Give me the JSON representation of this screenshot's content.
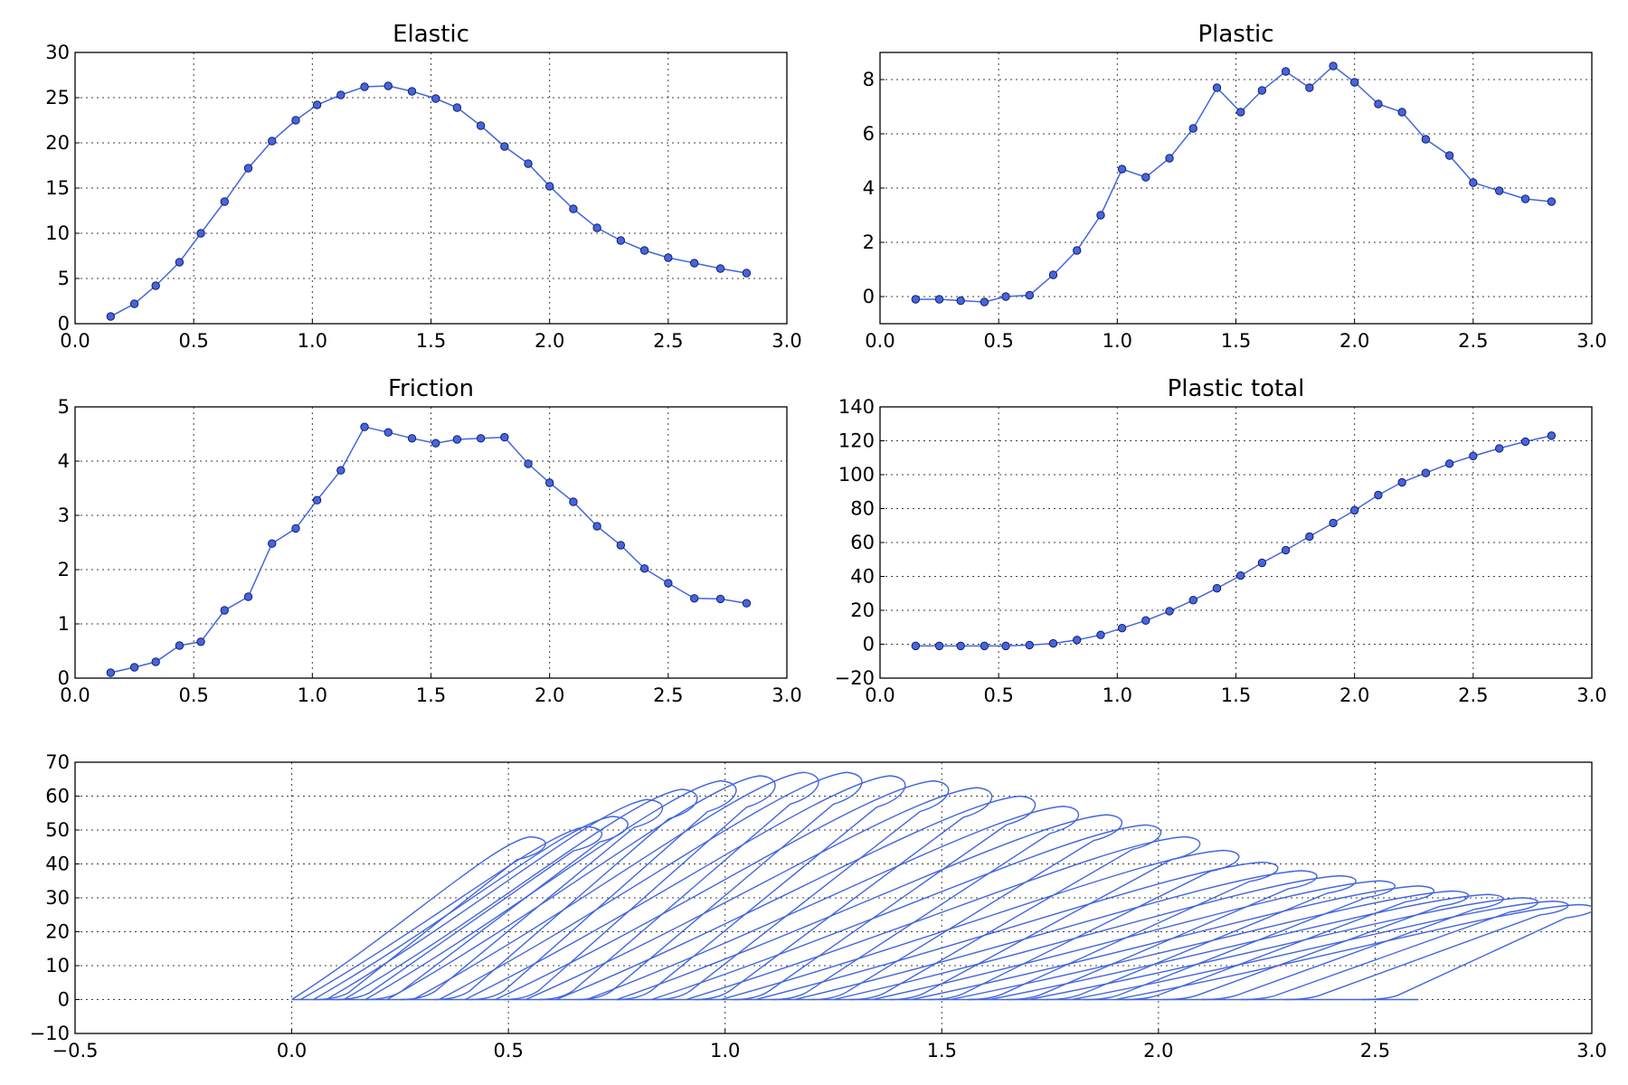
{
  "chart_data": [
    {
      "type": "line",
      "title": "Elastic",
      "xlim": [
        0,
        3
      ],
      "ylim": [
        0,
        30
      ],
      "xticks": [
        "0.0",
        "0.5",
        "1.0",
        "1.5",
        "2.0",
        "2.5",
        "3.0"
      ],
      "yticks": [
        "0",
        "5",
        "10",
        "15",
        "20",
        "25",
        "30"
      ],
      "grid": true,
      "series": [
        {
          "x": [
            0.15,
            0.25,
            0.34,
            0.44,
            0.53,
            0.63,
            0.73,
            0.83,
            0.93,
            1.02,
            1.12,
            1.22,
            1.32,
            1.42,
            1.52,
            1.61,
            1.71,
            1.81,
            1.91,
            2.0,
            2.1,
            2.2,
            2.3,
            2.4,
            2.5,
            2.61,
            2.72,
            2.83
          ],
          "y": [
            0.8,
            2.2,
            4.2,
            6.8,
            10.0,
            13.5,
            17.2,
            20.2,
            22.5,
            24.2,
            25.3,
            26.2,
            26.3,
            25.7,
            24.9,
            23.9,
            21.9,
            19.6,
            17.7,
            15.2,
            12.7,
            10.6,
            9.2,
            8.1,
            7.3,
            6.7,
            6.1,
            5.6
          ]
        }
      ]
    },
    {
      "type": "line",
      "title": "Plastic",
      "xlim": [
        0,
        3
      ],
      "ylim": [
        -1,
        9
      ],
      "xticks": [
        "0.0",
        "0.5",
        "1.0",
        "1.5",
        "2.0",
        "2.5",
        "3.0"
      ],
      "yticks": [
        "0",
        "2",
        "4",
        "6",
        "8"
      ],
      "grid": true,
      "series": [
        {
          "x": [
            0.15,
            0.25,
            0.34,
            0.44,
            0.53,
            0.63,
            0.73,
            0.83,
            0.93,
            1.02,
            1.12,
            1.22,
            1.32,
            1.42,
            1.52,
            1.61,
            1.71,
            1.81,
            1.91,
            2.0,
            2.1,
            2.2,
            2.3,
            2.4,
            2.5,
            2.61,
            2.72,
            2.83
          ],
          "y": [
            -0.1,
            -0.1,
            -0.15,
            -0.2,
            0.0,
            0.05,
            0.8,
            1.7,
            3.0,
            4.7,
            4.4,
            5.1,
            6.2,
            7.7,
            6.8,
            7.6,
            8.3,
            7.7,
            8.5,
            7.9,
            7.1,
            6.8,
            5.8,
            5.2,
            4.2,
            3.9,
            3.6,
            3.5
          ]
        }
      ]
    },
    {
      "type": "line",
      "title": "Friction",
      "xlim": [
        0,
        3
      ],
      "ylim": [
        0,
        5
      ],
      "xticks": [
        "0.0",
        "0.5",
        "1.0",
        "1.5",
        "2.0",
        "2.5",
        "3.0"
      ],
      "yticks": [
        "0",
        "1",
        "2",
        "3",
        "4",
        "5"
      ],
      "grid": true,
      "series": [
        {
          "x": [
            0.15,
            0.25,
            0.34,
            0.44,
            0.53,
            0.63,
            0.73,
            0.83,
            0.93,
            1.02,
            1.12,
            1.22,
            1.32,
            1.42,
            1.52,
            1.61,
            1.71,
            1.81,
            1.91,
            2.0,
            2.1,
            2.2,
            2.3,
            2.4,
            2.5,
            2.61,
            2.72,
            2.83
          ],
          "y": [
            0.1,
            0.2,
            0.3,
            0.6,
            0.67,
            1.25,
            1.5,
            2.48,
            2.76,
            3.28,
            3.83,
            4.63,
            4.53,
            4.42,
            4.33,
            4.4,
            4.42,
            4.44,
            3.95,
            3.6,
            3.25,
            2.8,
            2.45,
            2.02,
            1.75,
            1.47,
            1.46,
            1.38
          ]
        }
      ]
    },
    {
      "type": "line",
      "title": "Plastic total",
      "xlim": [
        0,
        3
      ],
      "ylim": [
        -20,
        140
      ],
      "xticks": [
        "0.0",
        "0.5",
        "1.0",
        "1.5",
        "2.0",
        "2.5",
        "3.0"
      ],
      "yticks": [
        "−20",
        "0",
        "20",
        "40",
        "60",
        "80",
        "100",
        "120",
        "140"
      ],
      "grid": true,
      "series": [
        {
          "x": [
            0.15,
            0.25,
            0.34,
            0.44,
            0.53,
            0.63,
            0.73,
            0.83,
            0.93,
            1.02,
            1.12,
            1.22,
            1.32,
            1.42,
            1.52,
            1.61,
            1.71,
            1.81,
            1.91,
            2.0,
            2.1,
            2.2,
            2.3,
            2.4,
            2.5,
            2.61,
            2.72,
            2.83
          ],
          "y": [
            -1.0,
            -1.0,
            -1.0,
            -1.0,
            -1.0,
            -0.5,
            0.5,
            2.5,
            5.5,
            9.5,
            14.0,
            19.5,
            26.0,
            33.0,
            40.5,
            48.0,
            55.5,
            63.5,
            71.5,
            79.0,
            88.0,
            95.5,
            101.0,
            106.5,
            111.0,
            115.5,
            119.5,
            123.0
          ]
        }
      ]
    },
    {
      "type": "line",
      "title": "",
      "xlim": [
        -0.5,
        3
      ],
      "ylim": [
        -10,
        70
      ],
      "xticks": [
        "−0.5",
        "0.0",
        "0.5",
        "1.0",
        "1.5",
        "2.0",
        "2.5",
        "3.0"
      ],
      "yticks": [
        "−10",
        "0",
        "10",
        "20",
        "30",
        "40",
        "50",
        "60",
        "70"
      ],
      "grid": true,
      "loops": [
        {
          "start": 0.0,
          "peak_x": 0.55,
          "peak_y": 48,
          "end": 0.1
        },
        {
          "start": 0.02,
          "peak_x": 0.68,
          "peak_y": 51,
          "end": 0.15
        },
        {
          "start": 0.05,
          "peak_x": 0.74,
          "peak_y": 54,
          "end": 0.22
        },
        {
          "start": 0.08,
          "peak_x": 0.82,
          "peak_y": 59,
          "end": 0.3
        },
        {
          "start": 0.12,
          "peak_x": 0.9,
          "peak_y": 62,
          "end": 0.38
        },
        {
          "start": 0.17,
          "peak_x": 0.99,
          "peak_y": 64.5,
          "end": 0.46
        },
        {
          "start": 0.22,
          "peak_x": 1.08,
          "peak_y": 66,
          "end": 0.54
        },
        {
          "start": 0.28,
          "peak_x": 1.18,
          "peak_y": 67,
          "end": 0.62
        },
        {
          "start": 0.34,
          "peak_x": 1.28,
          "peak_y": 67,
          "end": 0.71
        },
        {
          "start": 0.4,
          "peak_x": 1.38,
          "peak_y": 66,
          "end": 0.8
        },
        {
          "start": 0.47,
          "peak_x": 1.48,
          "peak_y": 64.5,
          "end": 0.89
        },
        {
          "start": 0.54,
          "peak_x": 1.58,
          "peak_y": 62.5,
          "end": 0.98
        },
        {
          "start": 0.61,
          "peak_x": 1.68,
          "peak_y": 60,
          "end": 1.07
        },
        {
          "start": 0.68,
          "peak_x": 1.78,
          "peak_y": 57,
          "end": 1.16
        },
        {
          "start": 0.75,
          "peak_x": 1.88,
          "peak_y": 54.5,
          "end": 1.25
        },
        {
          "start": 0.83,
          "peak_x": 1.97,
          "peak_y": 51.5,
          "end": 1.34
        },
        {
          "start": 0.91,
          "peak_x": 2.06,
          "peak_y": 48,
          "end": 1.43
        },
        {
          "start": 0.99,
          "peak_x": 2.15,
          "peak_y": 44,
          "end": 1.52
        },
        {
          "start": 1.07,
          "peak_x": 2.24,
          "peak_y": 40.5,
          "end": 1.61
        },
        {
          "start": 1.16,
          "peak_x": 2.33,
          "peak_y": 38,
          "end": 1.7
        },
        {
          "start": 1.25,
          "peak_x": 2.42,
          "peak_y": 36.5,
          "end": 1.79
        },
        {
          "start": 1.34,
          "peak_x": 2.51,
          "peak_y": 35,
          "end": 1.88
        },
        {
          "start": 1.43,
          "peak_x": 2.6,
          "peak_y": 33.5,
          "end": 1.97
        },
        {
          "start": 1.52,
          "peak_x": 2.68,
          "peak_y": 32,
          "end": 2.06
        },
        {
          "start": 1.61,
          "peak_x": 2.76,
          "peak_y": 31,
          "end": 2.15
        },
        {
          "start": 1.7,
          "peak_x": 2.84,
          "peak_y": 30,
          "end": 2.24
        },
        {
          "start": 1.8,
          "peak_x": 2.91,
          "peak_y": 29,
          "end": 2.34
        },
        {
          "start": 1.9,
          "peak_x": 2.97,
          "peak_y": 28,
          "end": 2.52
        }
      ]
    }
  ],
  "colors": {
    "series": "#4466dd",
    "marker_edge": "#1a1a66"
  }
}
